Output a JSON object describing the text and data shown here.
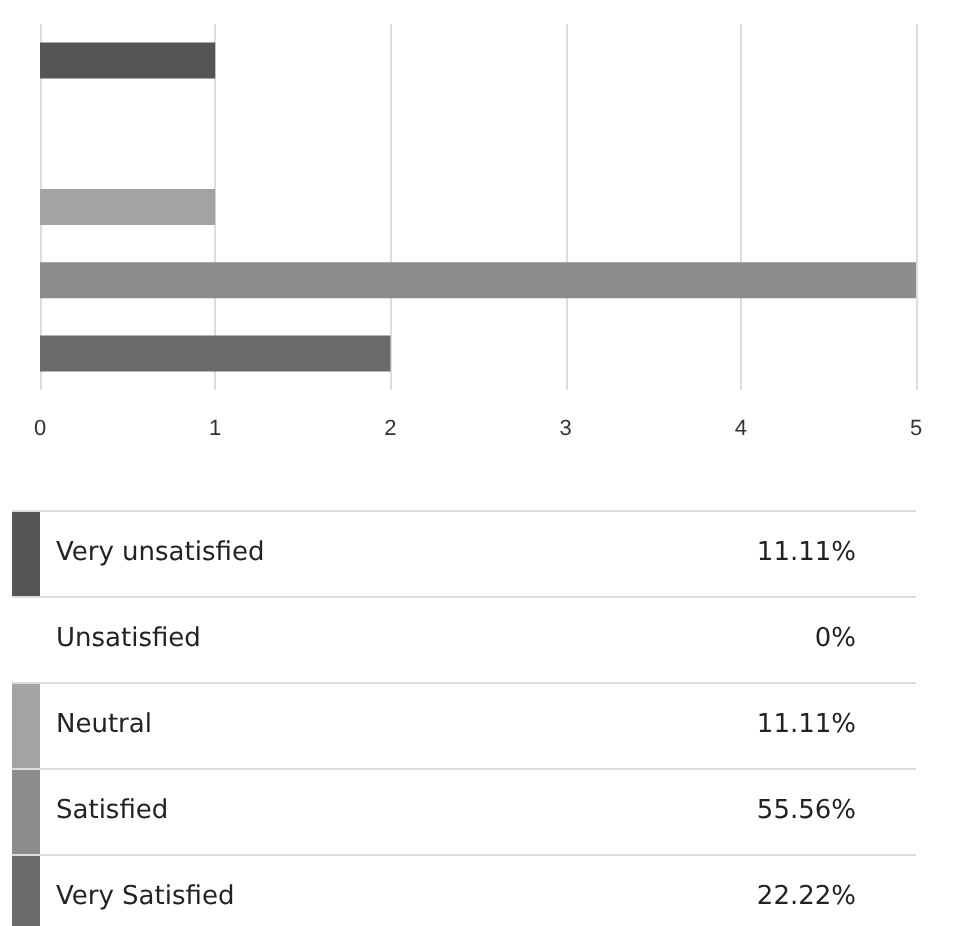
{
  "chart_data": [
    {
      "type": "bar",
      "orientation": "horizontal",
      "categories": [
        null,
        null,
        null,
        null,
        null
      ],
      "values": [
        1,
        0,
        1,
        5,
        2
      ],
      "colors": [
        "#555555",
        null,
        "#a3a3a3",
        "#8c8c8c",
        "#6a6a6a"
      ],
      "xlim": [
        0,
        5
      ],
      "xticks": [
        0,
        1,
        2,
        3,
        4,
        5
      ],
      "grid": "x",
      "tick_labels": "x"
    },
    {
      "type": "other",
      "categories": [
        "Very unsatisfied",
        "Unsatisfied",
        "Neutral",
        "Satisfied",
        "Very Satisfied"
      ],
      "colors": [
        "#555555",
        null,
        "#a3a3a3",
        "#8c8c8c",
        "#6a6a6a"
      ],
      "value_labels": [
        "11.11%",
        "0%",
        "11.11%",
        "55.56%",
        "22.22%"
      ]
    }
  ]
}
